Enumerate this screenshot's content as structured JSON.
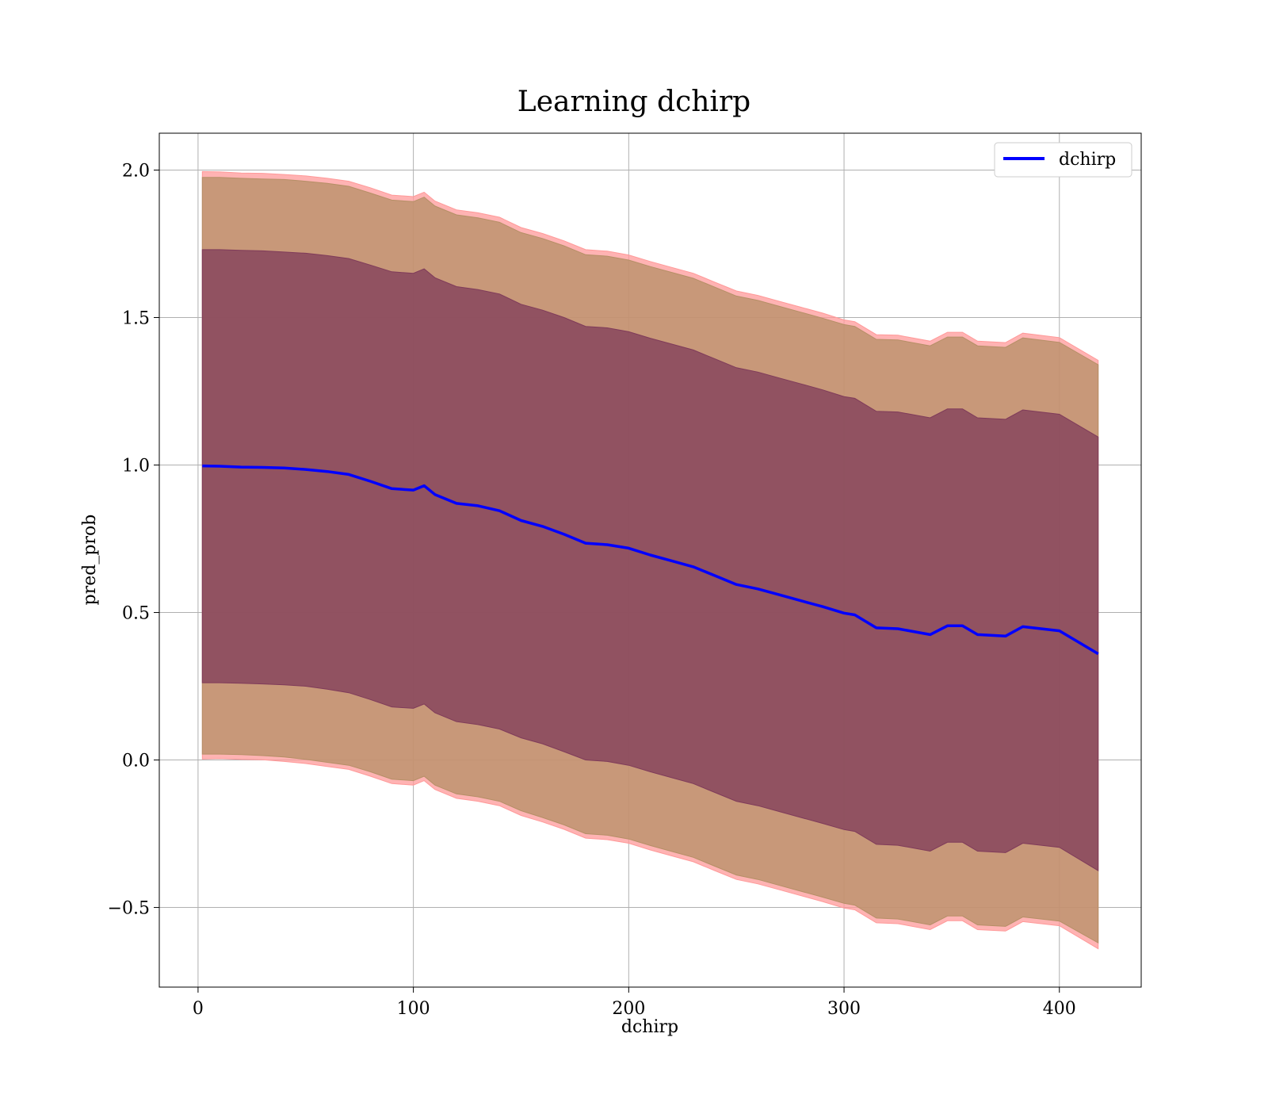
{
  "chart_data": {
    "type": "area",
    "title": "Learning dchirp",
    "xlabel": "dchirp",
    "ylabel": "pred_prob",
    "xlim": [
      -18,
      438
    ],
    "ylim": [
      -0.77,
      2.125
    ],
    "xticks": [
      0,
      100,
      200,
      300,
      400
    ],
    "xtick_labels": [
      "0",
      "100",
      "200",
      "300",
      "400"
    ],
    "yticks": [
      -0.5,
      0.0,
      0.5,
      1.0,
      1.5,
      2.0
    ],
    "ytick_labels": [
      "−0.5",
      "0.0",
      "0.5",
      "1.0",
      "1.5",
      "2.0"
    ],
    "grid": true,
    "legend_position": "top-right",
    "x": [
      2,
      10,
      20,
      30,
      40,
      50,
      60,
      70,
      80,
      90,
      100,
      105,
      110,
      120,
      130,
      140,
      150,
      160,
      170,
      180,
      190,
      200,
      210,
      220,
      230,
      240,
      250,
      260,
      270,
      280,
      290,
      300,
      305,
      315,
      325,
      340,
      348,
      355,
      362,
      375,
      383,
      400,
      418
    ],
    "series": [
      {
        "name": "dchirp",
        "color": "#0000ff",
        "values": [
          0.997,
          0.996,
          0.993,
          0.992,
          0.99,
          0.985,
          0.978,
          0.968,
          0.945,
          0.92,
          0.915,
          0.93,
          0.9,
          0.87,
          0.862,
          0.845,
          0.812,
          0.792,
          0.765,
          0.735,
          0.73,
          0.718,
          0.695,
          0.675,
          0.655,
          0.625,
          0.595,
          0.58,
          0.56,
          0.54,
          0.52,
          0.498,
          0.492,
          0.448,
          0.445,
          0.425,
          0.455,
          0.455,
          0.425,
          0.42,
          0.452,
          0.438,
          0.36
        ]
      }
    ],
    "bands": [
      {
        "color": "#ff9999",
        "lower": [
          0.003,
          0.005,
          0.002,
          0.001,
          -0.005,
          -0.012,
          -0.022,
          -0.032,
          -0.055,
          -0.08,
          -0.085,
          -0.07,
          -0.1,
          -0.13,
          -0.14,
          -0.155,
          -0.188,
          -0.21,
          -0.235,
          -0.265,
          -0.27,
          -0.282,
          -0.305,
          -0.325,
          -0.345,
          -0.375,
          -0.405,
          -0.42,
          -0.44,
          -0.46,
          -0.48,
          -0.502,
          -0.508,
          -0.552,
          -0.555,
          -0.575,
          -0.545,
          -0.545,
          -0.575,
          -0.58,
          -0.548,
          -0.562,
          -0.64
        ],
        "upper": [
          1.995,
          1.994,
          1.99,
          1.989,
          1.985,
          1.98,
          1.972,
          1.962,
          1.94,
          1.915,
          1.91,
          1.925,
          1.895,
          1.865,
          1.855,
          1.84,
          1.805,
          1.785,
          1.76,
          1.73,
          1.725,
          1.712,
          1.69,
          1.67,
          1.65,
          1.62,
          1.59,
          1.575,
          1.555,
          1.535,
          1.515,
          1.492,
          1.486,
          1.442,
          1.44,
          1.42,
          1.45,
          1.45,
          1.42,
          1.415,
          1.447,
          1.432,
          1.355
        ]
      },
      {
        "color": "#b58f66",
        "lower": [
          0.02,
          0.02,
          0.018,
          0.015,
          0.01,
          0.002,
          -0.008,
          -0.018,
          -0.04,
          -0.065,
          -0.07,
          -0.055,
          -0.085,
          -0.115,
          -0.125,
          -0.14,
          -0.172,
          -0.195,
          -0.22,
          -0.25,
          -0.255,
          -0.268,
          -0.29,
          -0.31,
          -0.33,
          -0.36,
          -0.39,
          -0.405,
          -0.425,
          -0.445,
          -0.465,
          -0.486,
          -0.492,
          -0.536,
          -0.539,
          -0.559,
          -0.529,
          -0.529,
          -0.559,
          -0.564,
          -0.532,
          -0.546,
          -0.62
        ],
        "upper": [
          1.975,
          1.975,
          1.972,
          1.97,
          1.968,
          1.962,
          1.955,
          1.945,
          1.922,
          1.898,
          1.893,
          1.908,
          1.878,
          1.848,
          1.838,
          1.823,
          1.788,
          1.768,
          1.743,
          1.713,
          1.708,
          1.695,
          1.673,
          1.653,
          1.633,
          1.603,
          1.573,
          1.558,
          1.538,
          1.518,
          1.498,
          1.476,
          1.47,
          1.426,
          1.424,
          1.404,
          1.434,
          1.434,
          1.404,
          1.399,
          1.431,
          1.416,
          1.34
        ]
      },
      {
        "color": "#7f3b5a",
        "lower": [
          0.262,
          0.262,
          0.26,
          0.258,
          0.255,
          0.25,
          0.24,
          0.228,
          0.205,
          0.18,
          0.175,
          0.19,
          0.16,
          0.13,
          0.12,
          0.105,
          0.075,
          0.055,
          0.028,
          0.0,
          -0.005,
          -0.018,
          -0.04,
          -0.06,
          -0.08,
          -0.11,
          -0.14,
          -0.155,
          -0.175,
          -0.195,
          -0.215,
          -0.236,
          -0.242,
          -0.286,
          -0.289,
          -0.309,
          -0.279,
          -0.279,
          -0.309,
          -0.314,
          -0.282,
          -0.296,
          -0.375
        ],
        "upper": [
          1.73,
          1.73,
          1.728,
          1.726,
          1.722,
          1.718,
          1.71,
          1.7,
          1.678,
          1.655,
          1.65,
          1.665,
          1.635,
          1.605,
          1.595,
          1.58,
          1.545,
          1.525,
          1.5,
          1.47,
          1.465,
          1.452,
          1.43,
          1.41,
          1.39,
          1.36,
          1.33,
          1.315,
          1.295,
          1.275,
          1.255,
          1.232,
          1.226,
          1.182,
          1.18,
          1.16,
          1.19,
          1.19,
          1.16,
          1.155,
          1.187,
          1.172,
          1.095
        ]
      }
    ]
  }
}
